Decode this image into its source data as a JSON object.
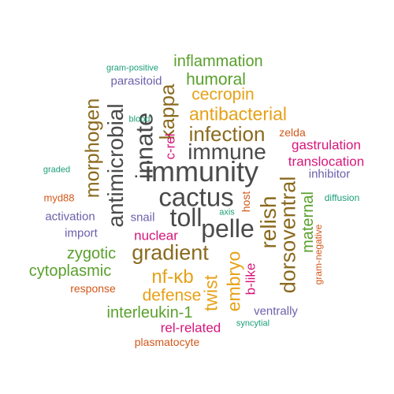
{
  "palette": {
    "dark_gray": "#4a4a4a",
    "olive": "#8a6a1e",
    "green": "#5aa02c",
    "orange": "#e6a117",
    "magenta": "#d6167a",
    "teal": "#1b9e77",
    "purple": "#6c5fab",
    "rust": "#d2571a"
  },
  "words": [
    {
      "text": "immunity",
      "color": "#4a4a4a",
      "rotated": false
    },
    {
      "text": "cactus",
      "color": "#4a4a4a",
      "rotated": false
    },
    {
      "text": "toll",
      "color": "#4a4a4a",
      "rotated": false
    },
    {
      "text": "pelle",
      "color": "#4a4a4a",
      "rotated": false
    },
    {
      "text": "immune",
      "color": "#4a4a4a",
      "rotated": false
    },
    {
      "text": "innate",
      "color": "#4a4a4a",
      "rotated": true
    },
    {
      "text": "antimicrobial",
      "color": "#4a4a4a",
      "rotated": true
    },
    {
      "text": "infection",
      "color": "#8a6a1e",
      "rotated": false
    },
    {
      "text": "morphogen",
      "color": "#8a6a1e",
      "rotated": true
    },
    {
      "text": "gradient",
      "color": "#8a6a1e",
      "rotated": false
    },
    {
      "text": "relish",
      "color": "#8a6a1e",
      "rotated": true
    },
    {
      "text": "dorsoventral",
      "color": "#8a6a1e",
      "rotated": true
    },
    {
      "text": "kappa",
      "color": "#8a6a1e",
      "rotated": true
    },
    {
      "text": "antibacterial",
      "color": "#e6a117",
      "rotated": false
    },
    {
      "text": "cecropin",
      "color": "#e6a117",
      "rotated": false
    },
    {
      "text": "nf-κb",
      "color": "#e6a117",
      "rotated": false
    },
    {
      "text": "defense",
      "color": "#e6a117",
      "rotated": false
    },
    {
      "text": "twist",
      "color": "#e6a117",
      "rotated": true
    },
    {
      "text": "embryo",
      "color": "#e6a117",
      "rotated": true
    },
    {
      "text": "inflammation",
      "color": "#5aa02c",
      "rotated": false
    },
    {
      "text": "humoral",
      "color": "#5aa02c",
      "rotated": false
    },
    {
      "text": "zygotic",
      "color": "#5aa02c",
      "rotated": false
    },
    {
      "text": "cytoplasmic",
      "color": "#5aa02c",
      "rotated": false
    },
    {
      "text": "interleukin-1",
      "color": "#5aa02c",
      "rotated": false
    },
    {
      "text": "maternal",
      "color": "#5aa02c",
      "rotated": true
    },
    {
      "text": "gastrulation",
      "color": "#d6167a",
      "rotated": false
    },
    {
      "text": "translocation",
      "color": "#d6167a",
      "rotated": false
    },
    {
      "text": "nuclear",
      "color": "#d6167a",
      "rotated": false
    },
    {
      "text": "rel-related",
      "color": "#d6167a",
      "rotated": false
    },
    {
      "text": "c-rel",
      "color": "#d6167a",
      "rotated": true
    },
    {
      "text": "b-like",
      "color": "#d6167a",
      "rotated": true
    },
    {
      "text": "parasitoid",
      "color": "#6c5fab",
      "rotated": false
    },
    {
      "text": "inhibitor",
      "color": "#6c5fab",
      "rotated": false
    },
    {
      "text": "activation",
      "color": "#6c5fab",
      "rotated": false
    },
    {
      "text": "import",
      "color": "#6c5fab",
      "rotated": false
    },
    {
      "text": "snail",
      "color": "#6c5fab",
      "rotated": false
    },
    {
      "text": "ventrally",
      "color": "#6c5fab",
      "rotated": false
    },
    {
      "text": "zelda",
      "color": "#d2571a",
      "rotated": false
    },
    {
      "text": "myd88",
      "color": "#d2571a",
      "rotated": false
    },
    {
      "text": "response",
      "color": "#d2571a",
      "rotated": false
    },
    {
      "text": "plasmatocyte",
      "color": "#d2571a",
      "rotated": false
    },
    {
      "text": "host",
      "color": "#d2571a",
      "rotated": true
    },
    {
      "text": "gram-negative",
      "color": "#d2571a",
      "rotated": true
    },
    {
      "text": "gram-positive",
      "color": "#1b9e77",
      "rotated": false
    },
    {
      "text": "blood",
      "color": "#1b9e77",
      "rotated": false
    },
    {
      "text": "graded",
      "color": "#1b9e77",
      "rotated": false
    },
    {
      "text": "diffusion",
      "color": "#1b9e77",
      "rotated": false
    },
    {
      "text": "axis",
      "color": "#1b9e77",
      "rotated": false
    },
    {
      "text": "syncytial",
      "color": "#1b9e77",
      "rotated": false
    }
  ]
}
